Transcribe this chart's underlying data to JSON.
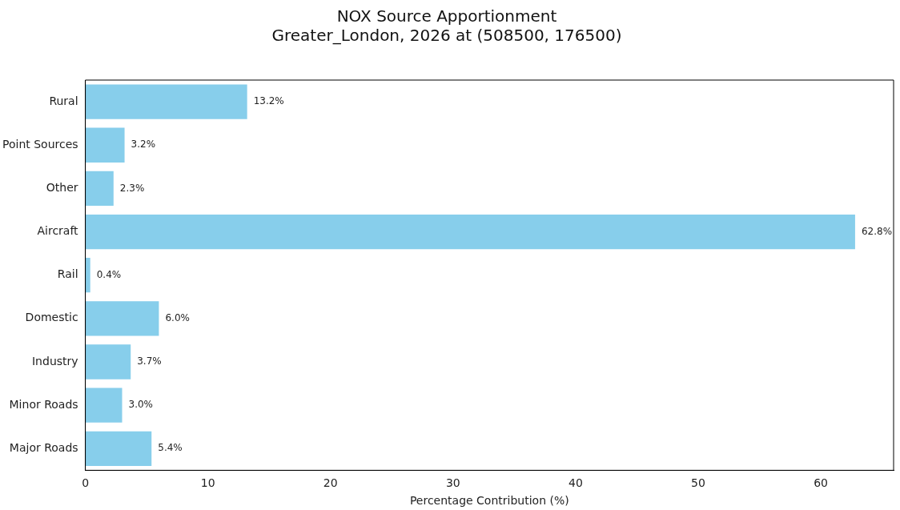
{
  "chart_data": {
    "type": "bar",
    "orientation": "horizontal",
    "title": "NOX Source Apportionment\nGreater_London, 2026 at (508500, 176500)",
    "xlabel": "Percentage Contribution (%)",
    "categories": [
      "Rural",
      "Point Sources",
      "Other",
      "Aircraft",
      "Rail",
      "Domestic",
      "Industry",
      "Minor Roads",
      "Major Roads"
    ],
    "values": [
      13.2,
      3.2,
      2.3,
      62.8,
      0.4,
      6.0,
      3.7,
      3.0,
      5.4
    ],
    "value_labels": [
      "13.2%",
      "3.2%",
      "2.3%",
      "62.8%",
      "0.4%",
      "6.0%",
      "3.7%",
      "3.0%",
      "5.4%"
    ],
    "color": "#87ceeb",
    "xlim": [
      0,
      65.94
    ],
    "xticks": [
      0,
      10,
      20,
      30,
      40,
      50,
      60
    ],
    "grid": false,
    "legend": false
  }
}
